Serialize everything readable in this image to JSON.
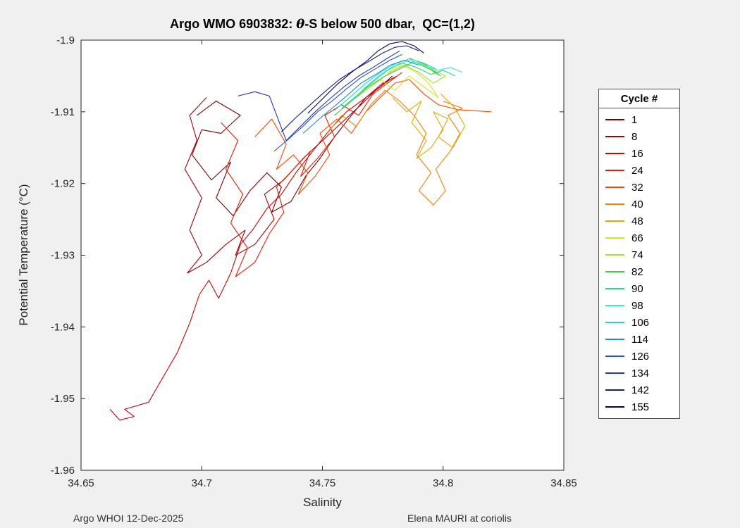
{
  "figure": {
    "title_prefix": "Argo WMO 6903832: ",
    "title_theta": "θ",
    "title_suffix": "-S below 500 dbar,  QC=(1,2)",
    "xlabel": "Salinity",
    "ylabel": "Potential Temperature (°C)",
    "footer_left": "Argo WHOI 12-Dec-2025",
    "footer_right": "Elena MAURI at coriolis",
    "background_color": "#f0f0f0",
    "axis_color": "#262626"
  },
  "legend": {
    "title": "Cycle #"
  },
  "chart_data": {
    "type": "line",
    "title": "Argo WMO 6903832: θ-S below 500 dbar,  QC=(1,2)",
    "xlabel": "Salinity",
    "ylabel": "Potential Temperature (°C)",
    "xlim": [
      34.65,
      34.85
    ],
    "ylim": [
      -1.96,
      -1.9
    ],
    "xticks": [
      34.65,
      34.7,
      34.75,
      34.8,
      34.85
    ],
    "xtick_labels": [
      "34.65",
      "34.7",
      "34.75",
      "34.8",
      "34.85"
    ],
    "yticks": [
      -1.9,
      -1.91,
      -1.92,
      -1.93,
      -1.94,
      -1.95,
      -1.96
    ],
    "ytick_labels": [
      "-1.9",
      "-1.91",
      "-1.92",
      "-1.93",
      "-1.94",
      "-1.95",
      "-1.96"
    ],
    "grid": false,
    "legend_title": "Cycle #",
    "legend_position": "right-outside",
    "colormap": "jet-reversed (cycle 1 = dark red, cycle 155 = dark blue)",
    "series": [
      {
        "name": "1",
        "color": "#7F0000",
        "points": [
          [
            34.698,
            -1.9105
          ],
          [
            34.706,
            -1.9085
          ],
          [
            34.716,
            -1.9105
          ],
          [
            34.708,
            -1.913
          ],
          [
            34.7,
            -1.9125
          ],
          [
            34.696,
            -1.916
          ],
          [
            34.704,
            -1.9195
          ],
          [
            34.712,
            -1.917
          ],
          [
            34.706,
            -1.922
          ],
          [
            34.713,
            -1.9245
          ],
          [
            34.72,
            -1.921
          ],
          [
            34.727,
            -1.9185
          ],
          [
            34.733,
            -1.9205
          ],
          [
            34.729,
            -1.924
          ],
          [
            34.737,
            -1.9225
          ],
          [
            34.743,
            -1.919
          ],
          [
            34.749,
            -1.9165
          ],
          [
            34.755,
            -1.9135
          ],
          [
            34.762,
            -1.9105
          ],
          [
            34.768,
            -1.908
          ],
          [
            34.774,
            -1.9065
          ],
          [
            34.779,
            -1.905
          ]
        ]
      },
      {
        "name": "8",
        "color": "#A80000",
        "points": [
          [
            34.702,
            -1.908
          ],
          [
            34.695,
            -1.9105
          ],
          [
            34.698,
            -1.914
          ],
          [
            34.693,
            -1.918
          ],
          [
            34.7,
            -1.922
          ],
          [
            34.695,
            -1.9265
          ],
          [
            34.7,
            -1.93
          ],
          [
            34.694,
            -1.9325
          ],
          [
            34.702,
            -1.931
          ],
          [
            34.71,
            -1.9285
          ],
          [
            34.718,
            -1.9265
          ],
          [
            34.714,
            -1.93
          ],
          [
            34.722,
            -1.9285
          ],
          [
            34.73,
            -1.925
          ],
          [
            34.726,
            -1.9215
          ],
          [
            34.734,
            -1.9195
          ],
          [
            34.742,
            -1.9165
          ],
          [
            34.75,
            -1.914
          ],
          [
            34.758,
            -1.9115
          ],
          [
            34.766,
            -1.909
          ],
          [
            34.772,
            -1.907
          ],
          [
            34.778,
            -1.9055
          ]
        ]
      },
      {
        "name": "16",
        "color": "#D40000",
        "points": [
          [
            34.662,
            -1.9515
          ],
          [
            34.666,
            -1.953
          ],
          [
            34.672,
            -1.9525
          ],
          [
            34.668,
            -1.9515
          ],
          [
            34.678,
            -1.9505
          ],
          [
            34.684,
            -1.947
          ],
          [
            34.69,
            -1.9435
          ],
          [
            34.695,
            -1.9395
          ],
          [
            34.699,
            -1.9355
          ],
          [
            34.703,
            -1.9335
          ],
          [
            34.707,
            -1.936
          ],
          [
            34.712,
            -1.9325
          ],
          [
            34.716,
            -1.9285
          ],
          [
            34.721,
            -1.9265
          ],
          [
            34.727,
            -1.9235
          ],
          [
            34.733,
            -1.9215
          ],
          [
            34.739,
            -1.9185
          ],
          [
            34.746,
            -1.9155
          ],
          [
            34.753,
            -1.9125
          ],
          [
            34.76,
            -1.91
          ],
          [
            34.768,
            -1.908
          ],
          [
            34.775,
            -1.906
          ],
          [
            34.781,
            -1.905
          ]
        ]
      },
      {
        "name": "24",
        "color": "#F21800",
        "points": [
          [
            34.708,
            -1.9115
          ],
          [
            34.715,
            -1.914
          ],
          [
            34.71,
            -1.918
          ],
          [
            34.717,
            -1.9215
          ],
          [
            34.712,
            -1.9255
          ],
          [
            34.719,
            -1.929
          ],
          [
            34.714,
            -1.933
          ],
          [
            34.722,
            -1.931
          ],
          [
            34.728,
            -1.927
          ],
          [
            34.734,
            -1.924
          ],
          [
            34.731,
            -1.9205
          ],
          [
            34.738,
            -1.918
          ],
          [
            34.745,
            -1.9155
          ],
          [
            34.741,
            -1.919
          ],
          [
            34.748,
            -1.9165
          ],
          [
            34.755,
            -1.9135
          ],
          [
            34.751,
            -1.9105
          ],
          [
            34.758,
            -1.909
          ],
          [
            34.765,
            -1.9105
          ],
          [
            34.771,
            -1.9075
          ],
          [
            34.777,
            -1.906
          ],
          [
            34.783,
            -1.9045
          ]
        ]
      },
      {
        "name": "32",
        "color": "#FF4500",
        "points": [
          [
            34.722,
            -1.9135
          ],
          [
            34.729,
            -1.911
          ],
          [
            34.735,
            -1.9145
          ],
          [
            34.731,
            -1.918
          ],
          [
            34.738,
            -1.916
          ],
          [
            34.744,
            -1.9185
          ],
          [
            34.74,
            -1.9215
          ],
          [
            34.747,
            -1.919
          ],
          [
            34.753,
            -1.916
          ],
          [
            34.749,
            -1.913
          ],
          [
            34.756,
            -1.911
          ],
          [
            34.762,
            -1.913
          ],
          [
            34.768,
            -1.91
          ],
          [
            34.774,
            -1.908
          ],
          [
            34.78,
            -1.906
          ],
          [
            34.786,
            -1.9055
          ],
          [
            34.792,
            -1.9075
          ],
          [
            34.798,
            -1.909
          ],
          [
            34.806,
            -1.9097
          ],
          [
            34.82,
            -1.91
          ]
        ]
      },
      {
        "name": "40",
        "color": "#FF7D00",
        "points": [
          [
            34.752,
            -1.913
          ],
          [
            34.758,
            -1.9105
          ],
          [
            34.764,
            -1.912
          ],
          [
            34.77,
            -1.909
          ],
          [
            34.776,
            -1.907
          ],
          [
            34.782,
            -1.9085
          ],
          [
            34.788,
            -1.9105
          ],
          [
            34.793,
            -1.913
          ],
          [
            34.789,
            -1.916
          ],
          [
            34.795,
            -1.9185
          ],
          [
            34.79,
            -1.921
          ],
          [
            34.796,
            -1.923
          ],
          [
            34.801,
            -1.921
          ],
          [
            34.797,
            -1.918
          ],
          [
            34.803,
            -1.9155
          ],
          [
            34.807,
            -1.913
          ],
          [
            34.802,
            -1.9105
          ],
          [
            34.808,
            -1.9095
          ],
          [
            34.8,
            -1.9085
          ]
        ]
      },
      {
        "name": "48",
        "color": "#E8A800",
        "points": [
          [
            34.779,
            -1.908
          ],
          [
            34.785,
            -1.91
          ],
          [
            34.791,
            -1.9085
          ],
          [
            34.787,
            -1.9115
          ],
          [
            34.793,
            -1.914
          ],
          [
            34.789,
            -1.9165
          ],
          [
            34.795,
            -1.915
          ],
          [
            34.8,
            -1.9125
          ],
          [
            34.796,
            -1.91
          ],
          [
            34.802,
            -1.911
          ],
          [
            34.798,
            -1.9135
          ],
          [
            34.804,
            -1.915
          ],
          [
            34.809,
            -1.912
          ],
          [
            34.805,
            -1.9095
          ],
          [
            34.799,
            -1.9075
          ]
        ]
      },
      {
        "name": "66",
        "color": "#D8E622",
        "points": [
          [
            34.768,
            -1.907
          ],
          [
            34.774,
            -1.9055
          ],
          [
            34.78,
            -1.907
          ],
          [
            34.786,
            -1.905
          ],
          [
            34.792,
            -1.9065
          ],
          [
            34.798,
            -1.908
          ],
          [
            34.794,
            -1.906
          ],
          [
            34.789,
            -1.9045
          ],
          [
            34.783,
            -1.9035
          ],
          [
            34.777,
            -1.9045
          ]
        ]
      },
      {
        "name": "74",
        "color": "#A6E22E",
        "points": [
          [
            34.76,
            -1.909
          ],
          [
            34.766,
            -1.9075
          ],
          [
            34.772,
            -1.906
          ],
          [
            34.778,
            -1.9045
          ],
          [
            34.784,
            -1.9035
          ],
          [
            34.79,
            -1.9045
          ],
          [
            34.796,
            -1.906
          ],
          [
            34.801,
            -1.905
          ],
          [
            34.795,
            -1.904
          ],
          [
            34.788,
            -1.903
          ]
        ]
      },
      {
        "name": "82",
        "color": "#3CCC3C",
        "points": [
          [
            34.755,
            -1.9105
          ],
          [
            34.762,
            -1.9085
          ],
          [
            34.769,
            -1.9065
          ],
          [
            34.776,
            -1.905
          ],
          [
            34.782,
            -1.904
          ],
          [
            34.788,
            -1.903
          ],
          [
            34.794,
            -1.904
          ],
          [
            34.799,
            -1.905
          ],
          [
            34.793,
            -1.9035
          ],
          [
            34.786,
            -1.9025
          ]
        ]
      },
      {
        "name": "90",
        "color": "#21DC87",
        "points": [
          [
            34.758,
            -1.9095
          ],
          [
            34.765,
            -1.9075
          ],
          [
            34.771,
            -1.9058
          ],
          [
            34.777,
            -1.9042
          ],
          [
            34.783,
            -1.9032
          ],
          [
            34.789,
            -1.9038
          ],
          [
            34.795,
            -1.9048
          ],
          [
            34.8,
            -1.9042
          ],
          [
            34.805,
            -1.905
          ]
        ]
      },
      {
        "name": "98",
        "color": "#2BF0CB",
        "points": [
          [
            34.762,
            -1.9085
          ],
          [
            34.768,
            -1.9065
          ],
          [
            34.774,
            -1.9048
          ],
          [
            34.78,
            -1.9035
          ],
          [
            34.786,
            -1.9028
          ],
          [
            34.792,
            -1.9035
          ],
          [
            34.798,
            -1.9042
          ],
          [
            34.803,
            -1.9038
          ],
          [
            34.808,
            -1.9045
          ]
        ]
      },
      {
        "name": "106",
        "color": "#27D0DC",
        "points": [
          [
            34.755,
            -1.9098
          ],
          [
            34.762,
            -1.9078
          ],
          [
            34.768,
            -1.906
          ],
          [
            34.774,
            -1.9045
          ],
          [
            34.78,
            -1.9033
          ],
          [
            34.786,
            -1.9026
          ],
          [
            34.792,
            -1.9032
          ],
          [
            34.797,
            -1.904
          ]
        ]
      },
      {
        "name": "114",
        "color": "#1890C8",
        "points": [
          [
            34.742,
            -1.913
          ],
          [
            34.748,
            -1.9112
          ],
          [
            34.754,
            -1.9095
          ],
          [
            34.76,
            -1.9078
          ],
          [
            34.766,
            -1.906
          ],
          [
            34.772,
            -1.9048
          ],
          [
            34.778,
            -1.9035
          ],
          [
            34.784,
            -1.9028
          ],
          [
            34.79,
            -1.9035
          ]
        ]
      },
      {
        "name": "126",
        "color": "#2850E0",
        "points": [
          [
            34.73,
            -1.9155
          ],
          [
            34.736,
            -1.9138
          ],
          [
            34.742,
            -1.912
          ],
          [
            34.748,
            -1.91
          ],
          [
            34.754,
            -1.9085
          ],
          [
            34.76,
            -1.9068
          ],
          [
            34.766,
            -1.9052
          ],
          [
            34.772,
            -1.904
          ],
          [
            34.778,
            -1.9028
          ],
          [
            34.783,
            -1.902
          ]
        ]
      },
      {
        "name": "134",
        "color": "#1E38BE",
        "points": [
          [
            34.715,
            -1.9078
          ],
          [
            34.722,
            -1.9072
          ],
          [
            34.728,
            -1.9078
          ],
          [
            34.735,
            -1.914
          ],
          [
            34.741,
            -1.912
          ],
          [
            34.747,
            -1.91
          ],
          [
            34.753,
            -1.9082
          ],
          [
            34.759,
            -1.9065
          ],
          [
            34.765,
            -1.905
          ],
          [
            34.771,
            -1.9038
          ],
          [
            34.777,
            -1.9025
          ],
          [
            34.782,
            -1.9015
          ]
        ]
      },
      {
        "name": "142",
        "color": "#142080",
        "points": [
          [
            34.733,
            -1.9128
          ],
          [
            34.739,
            -1.9108
          ],
          [
            34.745,
            -1.909
          ],
          [
            34.751,
            -1.9072
          ],
          [
            34.757,
            -1.9055
          ],
          [
            34.763,
            -1.9042
          ],
          [
            34.769,
            -1.903
          ],
          [
            34.775,
            -1.9018
          ],
          [
            34.78,
            -1.901
          ],
          [
            34.785,
            -1.9008
          ],
          [
            34.79,
            -1.9015
          ]
        ]
      },
      {
        "name": "155",
        "color": "#000066",
        "points": [
          [
            34.744,
            -1.9102
          ],
          [
            34.75,
            -1.9082
          ],
          [
            34.756,
            -1.9062
          ],
          [
            34.762,
            -1.9045
          ],
          [
            34.768,
            -1.903
          ],
          [
            34.773,
            -1.9015
          ],
          [
            34.778,
            -1.9005
          ],
          [
            34.783,
            -1.9002
          ],
          [
            34.788,
            -1.9008
          ],
          [
            34.792,
            -1.9018
          ]
        ]
      }
    ]
  }
}
